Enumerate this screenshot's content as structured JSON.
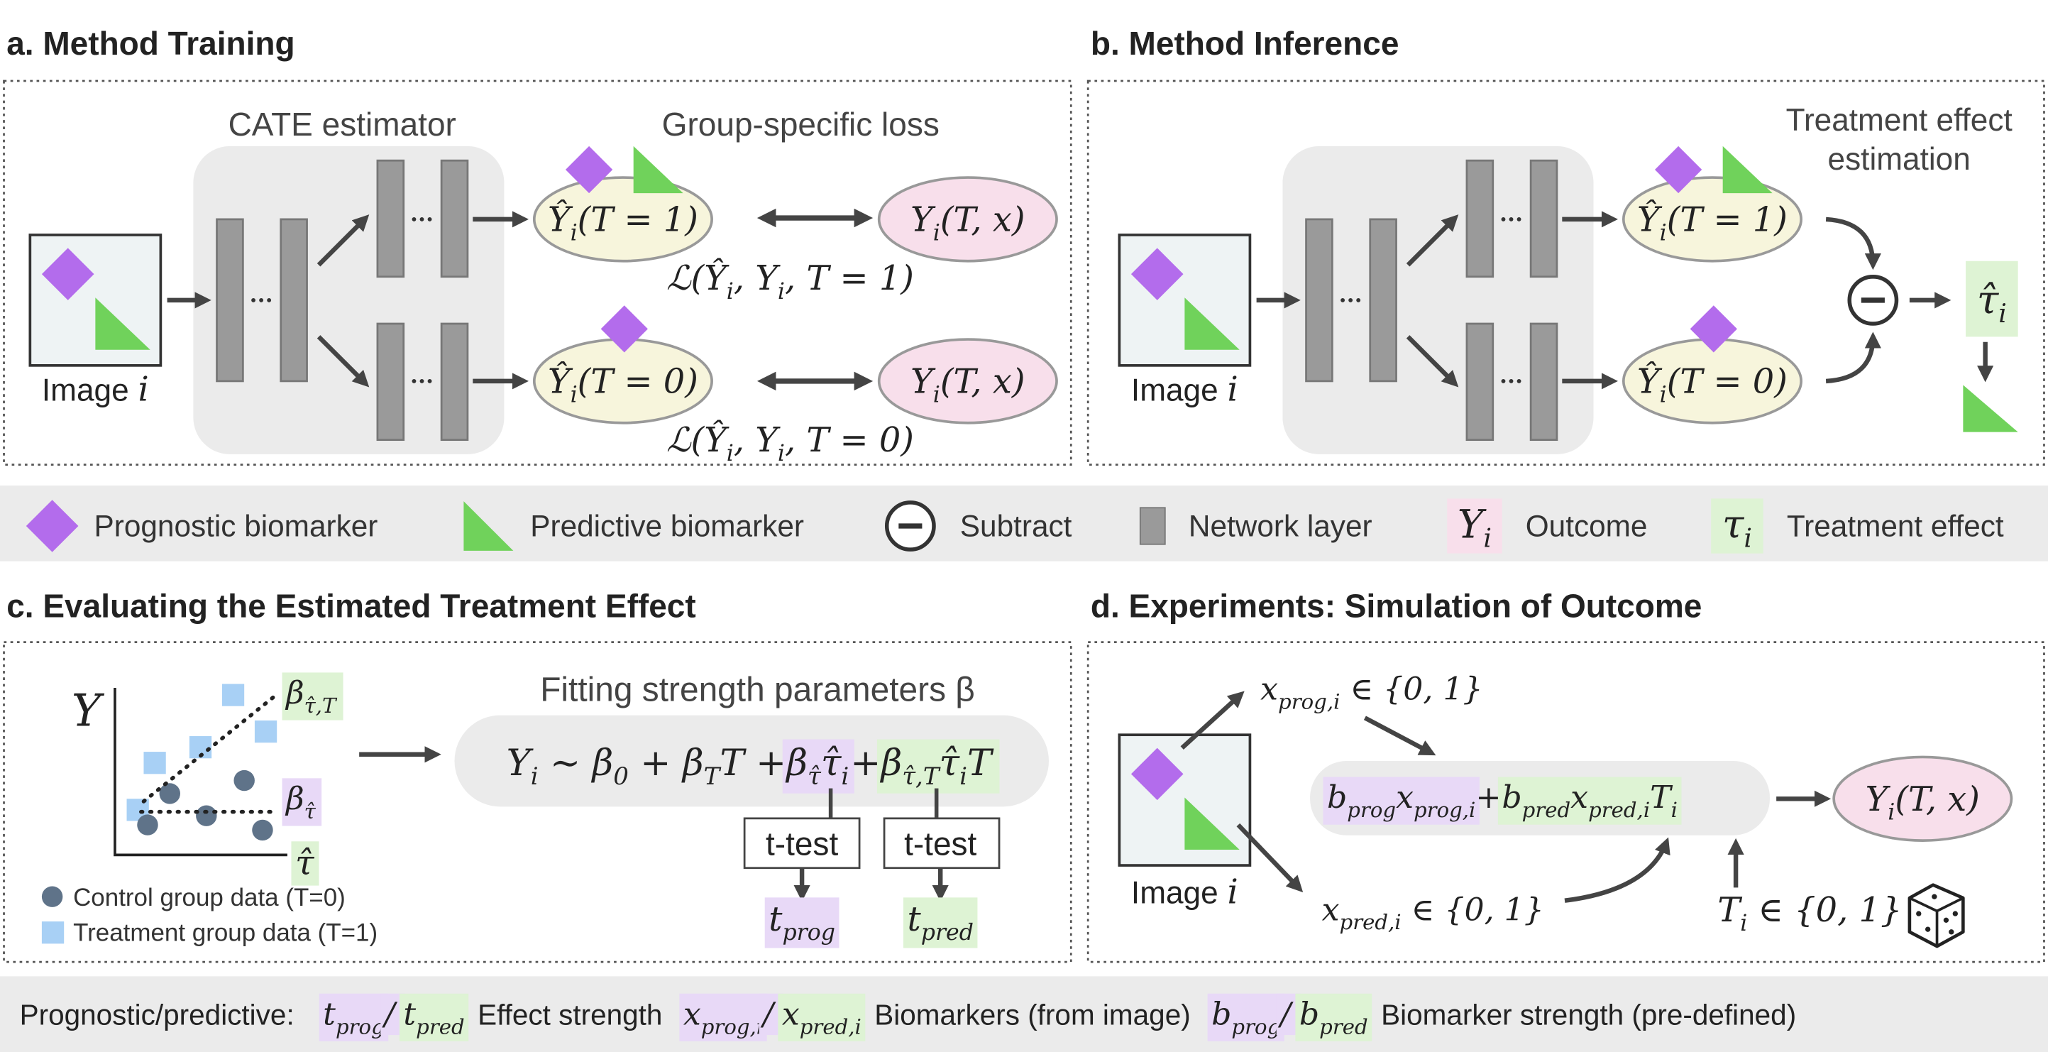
{
  "panel_a": {
    "title": "a. Method Training",
    "estimator": "CATE estimator",
    "loss_title": "Group-specific loss",
    "image_label": {
      "text": "Image",
      "var": [
        {
          "base": "i"
        }
      ]
    },
    "output_1": [
      {
        "base": "Ŷ",
        "sub": "i",
        "after": "(T = 1)"
      }
    ],
    "output_0": [
      {
        "base": "Ŷ",
        "sub": "i",
        "after": "(T = 0)"
      }
    ],
    "target_1": [
      {
        "base": "Y",
        "sub": "i",
        "after": "(T, x)"
      }
    ],
    "target_0": [
      {
        "base": "Y",
        "sub": "i",
        "after": "(T, x)"
      }
    ],
    "loss_1": [
      {
        "base": "ℒ(Ŷ",
        "sub": "i",
        "after": ", Y"
      },
      {
        "sub": "i",
        "after": ", T = 1)"
      }
    ],
    "loss_0": [
      {
        "base": "ℒ(Ŷ",
        "sub": "i",
        "after": ", Y"
      },
      {
        "sub": "i",
        "after": ", T = 0)"
      }
    ]
  },
  "panel_b": {
    "title": "b. Method Inference",
    "effect_title": [
      "Treatment effect",
      "estimation"
    ],
    "image_label": {
      "text": "Image",
      "var": [
        {
          "base": "i"
        }
      ]
    },
    "output_1": [
      {
        "base": "Ŷ",
        "sub": "i",
        "after": "(T = 1)"
      }
    ],
    "output_0": [
      {
        "base": "Ŷ",
        "sub": "i",
        "after": "(T = 0)"
      }
    ],
    "result": [
      {
        "base": "τ̂",
        "sub": "i"
      }
    ]
  },
  "legend": {
    "items": [
      {
        "label": "Prognostic biomarker"
      },
      {
        "label": "Predictive biomarker"
      },
      {
        "label": "Subtract"
      },
      {
        "label": "Network layer"
      },
      {
        "symbol": [
          {
            "base": "Y",
            "sub": "i"
          }
        ],
        "label": "Outcome"
      },
      {
        "symbol": [
          {
            "base": "τ",
            "sub": "i"
          }
        ],
        "label": "Treatment effect"
      }
    ]
  },
  "panel_c": {
    "title": "c. Evaluating the Estimated Treatment Effect",
    "y_axis": [
      {
        "base": "Y"
      }
    ],
    "x_axis": [
      {
        "base": "τ̂"
      }
    ],
    "line_labels": [
      [
        {
          "base": "β",
          "sub": "τ̂,T"
        }
      ],
      [
        {
          "base": "β",
          "sub": "τ̂"
        }
      ]
    ],
    "data_legend": [
      "Control group data (T=0)",
      "Treatment group data (T=1)"
    ],
    "fit_title": "Fitting strength parameters β",
    "equation": {
      "lead": [
        {
          "base": "Y",
          "sub": "i",
          "after": " ∼ β"
        },
        {
          "sub": "0",
          "after": " + β"
        },
        {
          "sub": "T",
          "after": "T + "
        }
      ],
      "prognostic": [
        {
          "base": "β",
          "sub": "τ̂",
          "after": "τ̂"
        },
        {
          "sub": "i"
        }
      ],
      "plus": [
        {
          "base": " + "
        }
      ],
      "predictive": [
        {
          "base": "β",
          "sub": "τ̂,T",
          "after": "τ̂"
        },
        {
          "sub": "i",
          "after": "T"
        }
      ]
    },
    "tests": [
      "t-test",
      "t-test"
    ],
    "stats": [
      [
        {
          "base": "t",
          "sub": "prog"
        }
      ],
      [
        {
          "base": "t",
          "sub": "pred"
        }
      ]
    ]
  },
  "panel_d": {
    "title": "d. Experiments: Simulation of Outcome",
    "image_label": {
      "text": "Image",
      "var": [
        {
          "base": "i"
        }
      ]
    },
    "x_prog": [
      {
        "base": "x",
        "sub": "prog,i",
        "after": " ∈ {0, 1}"
      }
    ],
    "x_pred": [
      {
        "base": "x",
        "sub": "pred,i",
        "after": " ∈ {0, 1}"
      }
    ],
    "equation": {
      "prognostic": [
        {
          "base": "b",
          "sub": "prog",
          "after": "x"
        },
        {
          "sub": "prog,i"
        }
      ],
      "plus": [
        {
          "base": " + "
        }
      ],
      "predictive": [
        {
          "base": "b",
          "sub": "pred",
          "after": "x"
        },
        {
          "sub": "pred,i",
          "after": "T"
        },
        {
          "sub": "i"
        }
      ]
    },
    "treatment": [
      {
        "base": "T",
        "sub": "i",
        "after": " ∈ {0, 1}"
      }
    ],
    "outcome": [
      {
        "base": "Y",
        "sub": "i",
        "after": "(T, x)"
      }
    ]
  },
  "footer": {
    "lead": "Prognostic/predictive:",
    "items": [
      {
        "prognostic": [
          {
            "base": "t",
            "sub": "prog"
          }
        ],
        "sep": [
          {
            "base": "/"
          }
        ],
        "predictive": [
          {
            "base": "t",
            "sub": "pred"
          }
        ],
        "label": "Effect strength"
      },
      {
        "prognostic": [
          {
            "base": "x",
            "sub": "prog,i"
          }
        ],
        "sep": [
          {
            "base": "/"
          }
        ],
        "predictive": [
          {
            "base": "x",
            "sub": "pred,i"
          }
        ],
        "label": "Biomarkers (from image)"
      },
      {
        "prognostic": [
          {
            "base": "b",
            "sub": "prog"
          }
        ],
        "sep": [
          {
            "base": "/"
          }
        ],
        "predictive": [
          {
            "base": "b",
            "sub": "pred"
          }
        ],
        "label": "Biomarker strength (pre-defined)"
      }
    ]
  }
}
